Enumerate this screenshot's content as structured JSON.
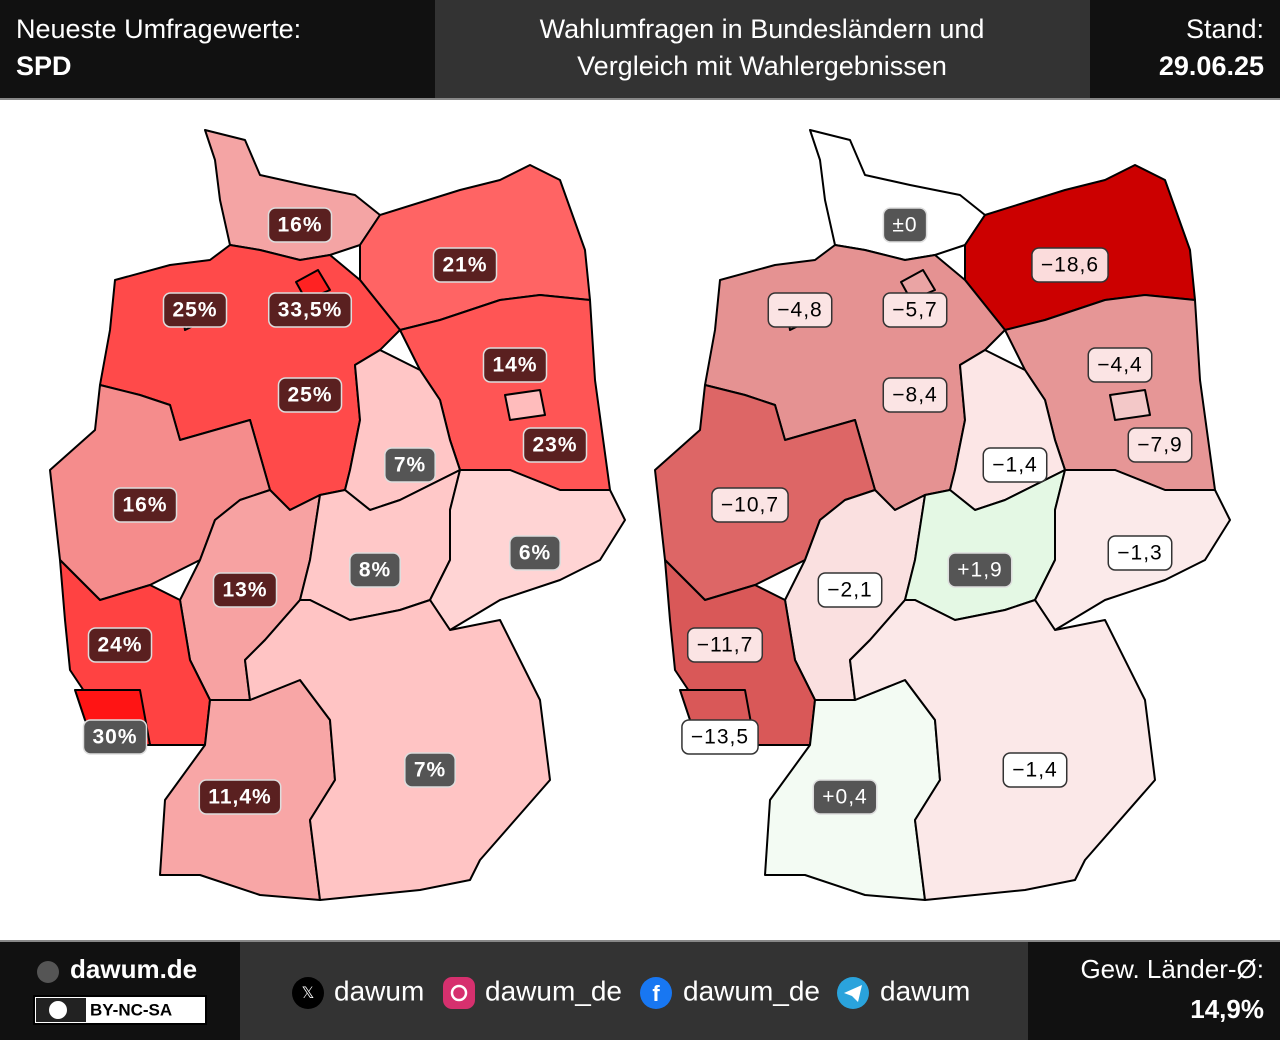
{
  "header": {
    "left_title": "Neueste Umfragewerte:",
    "party": "SPD",
    "title": [
      "Wahlumfragen in Bundesländern und",
      "Vergleich mit Wahlergebnissen"
    ],
    "stand_label": "Stand:",
    "date": "29.06.25"
  },
  "poll_map": {
    "labels": [
      "16%",
      "21%",
      "25%",
      "33,5%",
      "25%",
      "23%",
      "14%",
      "7%",
      "16%",
      "13%",
      "8%",
      "6%",
      "24%",
      "30%",
      "11,4%",
      "7%"
    ],
    "colors": [
      "#f4a4a4",
      "#ff6464",
      "#ff4a4a",
      "#ff2222",
      "#ff4a4a",
      "#ff5555",
      "#ffbcbc",
      "#ffc6c6",
      "#f58c8c",
      "#f7a2a2",
      "#ffc8c8",
      "#ffd4d4",
      "#ff4242",
      "#ff1414",
      "#f8a6a6",
      "#ffc4c4"
    ],
    "label_fills": [
      "#5a2020",
      "#5a2020",
      "#5a2020",
      "#5a2020",
      "#5a2020",
      "#5a2020",
      "#5a2020",
      "#555555",
      "#5a2020",
      "#5a2020",
      "#555555",
      "#555555",
      "#5a2020",
      "#555555",
      "#5a2020",
      "#555555"
    ]
  },
  "change_map": {
    "labels": [
      "±0",
      "−18,6",
      "−8,4",
      "−5,7",
      "−4,8",
      "−7,9",
      "−4,4",
      "−1,4",
      "−10,7",
      "−2,1",
      "+1,9",
      "−1,3",
      "−11,7",
      "−13,5",
      "+0,4",
      "−1,4"
    ],
    "colors": [
      "#ffffff",
      "#cc0000",
      "#e59292",
      "#eaa4a4",
      "#e59292",
      "#e69696",
      "#f3c8c8",
      "#fce6e6",
      "#dd6666",
      "#fae0e0",
      "#e4f8e4",
      "#fbeaea",
      "#d95858",
      "#d95858",
      "#f3fbf3",
      "#fbe8e8"
    ],
    "label_fills": [
      "#555555",
      "#fbdcdc",
      "#fbe4e4",
      "#fbe4e4",
      "#fbe4e4",
      "#fbe4e4",
      "#fbe4e4",
      "#ffffff",
      "#fbe4e4",
      "#ffffff",
      "#555555",
      "#ffffff",
      "#fbe4e4",
      "#ffffff",
      "#555555",
      "#ffffff"
    ]
  },
  "footer": {
    "site": "dawum.de",
    "license": "BY-NC-SA",
    "social": [
      "dawum",
      "dawum_de",
      "dawum_de",
      "dawum"
    ],
    "average_label": "Gew. Länder-Ø:",
    "average": "14,9%"
  }
}
